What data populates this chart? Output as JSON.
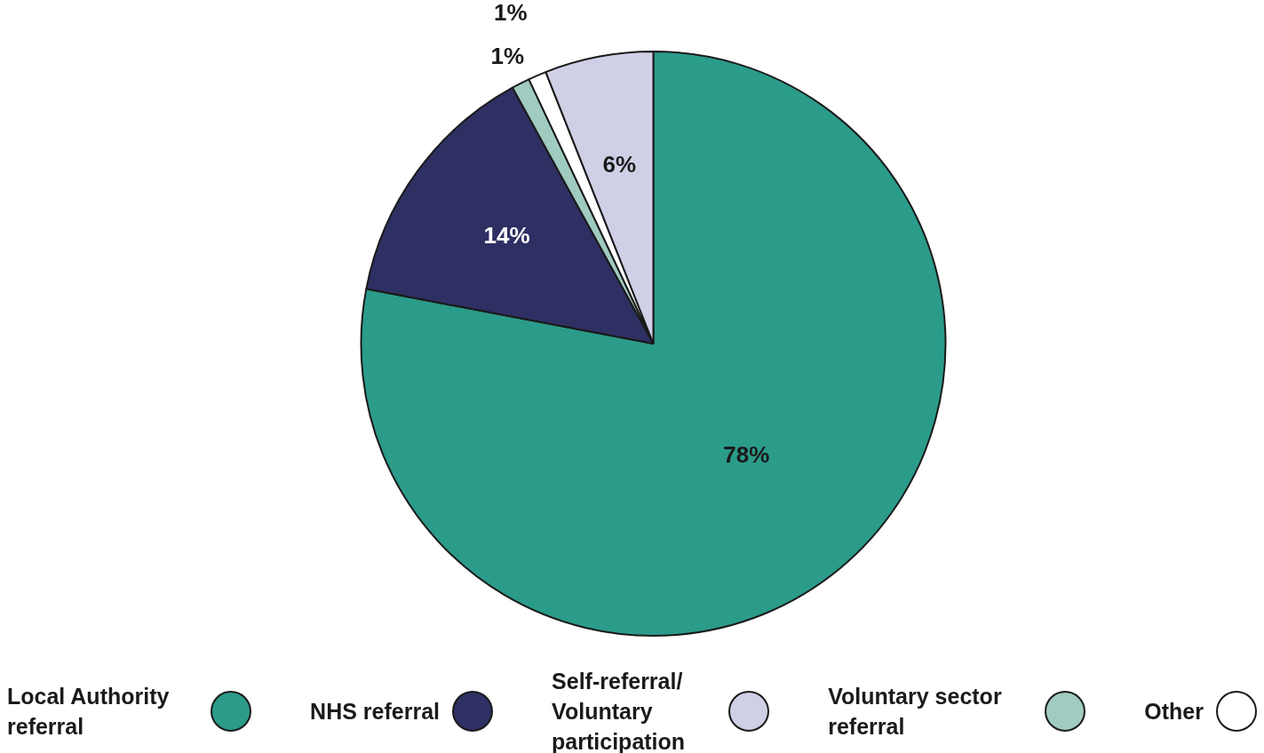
{
  "chart_data": {
    "type": "pie",
    "categories": [
      "Local Authority referral",
      "NHS referral",
      "Voluntary sector referral",
      "Other",
      "Self-referral/ Voluntary participation"
    ],
    "values": [
      78,
      14,
      1,
      1,
      6
    ],
    "colors": [
      "#2b9b8a",
      "#2e2f63",
      "#a0cbc1",
      "#ffffff",
      "#cfcfe6"
    ],
    "value_labels": [
      "78%",
      "14%",
      "1%",
      "1%",
      "6%"
    ],
    "legend": "bottom"
  }
}
